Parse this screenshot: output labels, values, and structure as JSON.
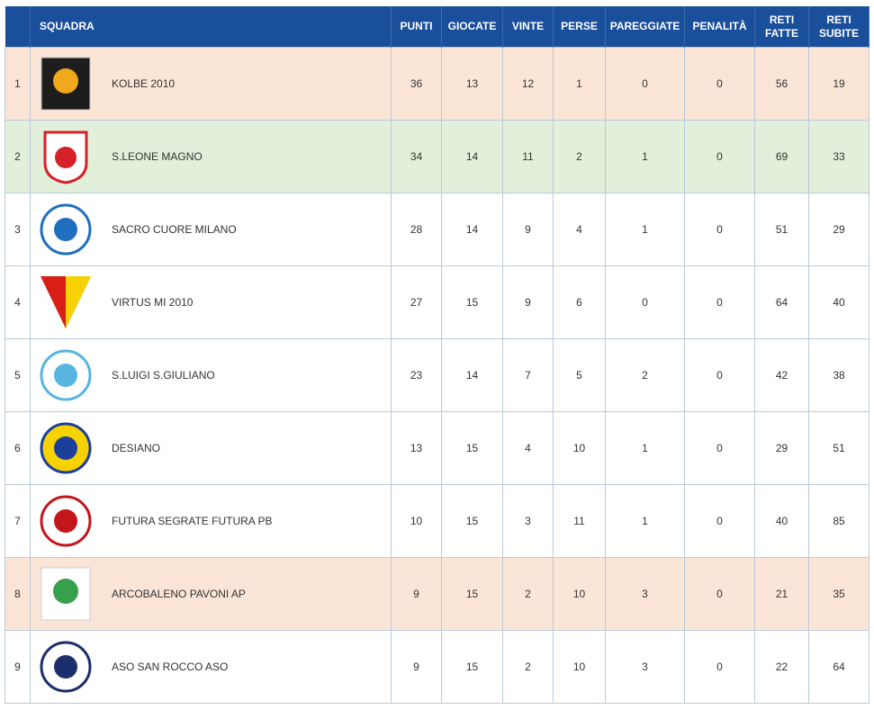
{
  "table": {
    "columns": [
      "",
      "SQUADRA",
      "PUNTI",
      "GIOCATE",
      "VINTE",
      "PERSE",
      "PAREGGIATE",
      "PENALITÀ",
      "RETI FATTE",
      "RETI SUBITE"
    ],
    "rows": [
      [
        "1",
        "KOLBE 2010",
        "36",
        "13",
        "12",
        "1",
        "0",
        "0",
        "56",
        "19"
      ],
      [
        "2",
        "S.LEONE MAGNO",
        "34",
        "14",
        "11",
        "2",
        "1",
        "0",
        "69",
        "33"
      ],
      [
        "3",
        "SACRO CUORE MILANO",
        "28",
        "14",
        "9",
        "4",
        "1",
        "0",
        "51",
        "29"
      ],
      [
        "4",
        "VIRTUS MI 2010",
        "27",
        "15",
        "9",
        "6",
        "0",
        "0",
        "64",
        "40"
      ],
      [
        "5",
        "S.LUIGI S.GIULIANO",
        "23",
        "14",
        "7",
        "5",
        "2",
        "0",
        "42",
        "38"
      ],
      [
        "6",
        "DESIANO",
        "13",
        "15",
        "4",
        "10",
        "1",
        "0",
        "29",
        "51"
      ],
      [
        "7",
        "FUTURA SEGRATE FUTURA PB",
        "10",
        "15",
        "3",
        "11",
        "1",
        "0",
        "40",
        "85"
      ],
      [
        "8",
        "ARCOBALENO PAVONI AP",
        "9",
        "15",
        "2",
        "10",
        "3",
        "0",
        "21",
        "35"
      ],
      [
        "9",
        "ASO SAN ROCCO ASO",
        "9",
        "15",
        "2",
        "10",
        "3",
        "0",
        "22",
        "64"
      ]
    ]
  }
}
